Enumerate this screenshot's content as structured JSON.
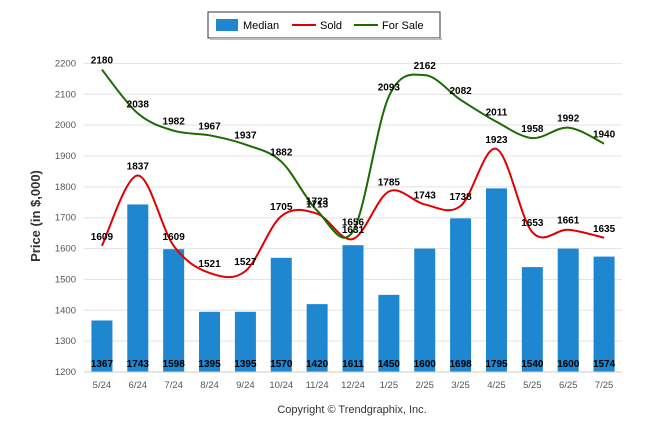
{
  "chart_data": {
    "type": "bar",
    "categories": [
      "5/24",
      "6/24",
      "7/24",
      "8/24",
      "9/24",
      "10/24",
      "11/24",
      "12/24",
      "1/25",
      "2/25",
      "3/25",
      "4/25",
      "5/25",
      "6/25",
      "7/25"
    ],
    "series": [
      {
        "name": "Median",
        "type": "bar",
        "color": "#1f86d0",
        "values": [
          1367,
          1743,
          1598,
          1395,
          1395,
          1570,
          1420,
          1611,
          1450,
          1600,
          1698,
          1795,
          1540,
          1600,
          1574
        ]
      },
      {
        "name": "Sold",
        "type": "line",
        "color": "#e00000",
        "values": [
          1609,
          1837,
          1609,
          1521,
          1527,
          1705,
          1713,
          1631,
          1785,
          1743,
          1738,
          1923,
          1653,
          1661,
          1635
        ]
      },
      {
        "name": "For Sale",
        "type": "line",
        "color": "#1a6b00",
        "values": [
          2180,
          2038,
          1982,
          1967,
          1937,
          1882,
          1723,
          1656,
          2093,
          2162,
          2082,
          2011,
          1958,
          1992,
          1940
        ]
      }
    ],
    "ylabel": "Price (in $,000)",
    "xlabel": "",
    "ylim": [
      1200,
      2250
    ],
    "yticks": [
      1200,
      1300,
      1400,
      1500,
      1600,
      1700,
      1800,
      1900,
      2000,
      2100,
      2200
    ],
    "grid": true,
    "legend": "top-center"
  },
  "footer": {
    "copyright": "Copyright © Trendgraphix, Inc."
  }
}
